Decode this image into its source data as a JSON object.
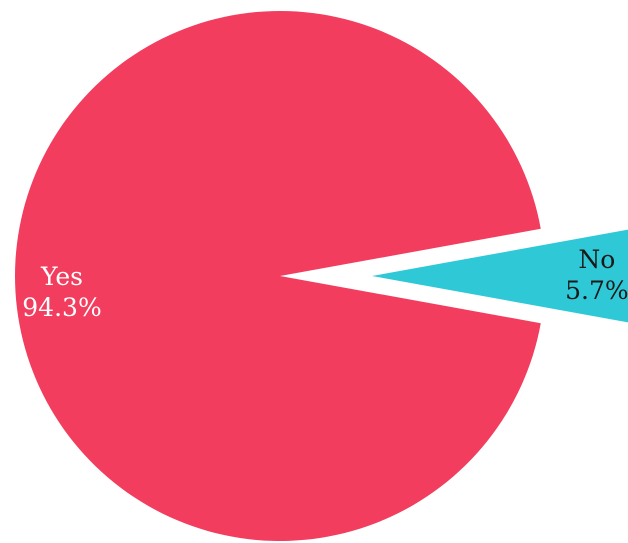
{
  "chart_data": {
    "type": "pie",
    "title": "",
    "legend": "none",
    "slices": [
      {
        "label": "Yes",
        "value": 94.3,
        "value_label": "94.3%",
        "color": "#f23d5f",
        "label_color": "#ffffff",
        "exploded": false
      },
      {
        "label": "No",
        "value": 5.7,
        "value_label": "5.7%",
        "color": "#2ec8d7",
        "label_color": "#1a1a1a",
        "exploded": true
      }
    ]
  }
}
